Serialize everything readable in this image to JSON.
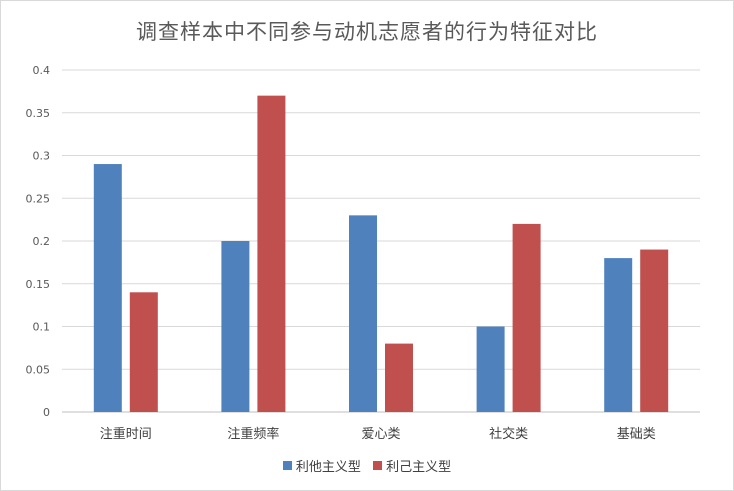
{
  "chart_data": {
    "type": "bar",
    "title": "调查样本中不同参与动机志愿者的行为特征对比",
    "categories": [
      "注重时间",
      "注重频率",
      "爱心类",
      "社交类",
      "基础类"
    ],
    "series": [
      {
        "name": "利他主义型",
        "values": [
          0.29,
          0.2,
          0.23,
          0.1,
          0.18
        ],
        "color": "#4f81bd"
      },
      {
        "name": "利己主义型",
        "values": [
          0.14,
          0.37,
          0.08,
          0.22,
          0.19
        ],
        "color": "#c0504d"
      }
    ],
    "ylim": [
      0,
      0.4
    ],
    "yticks": [
      "0",
      "0.05",
      "0.1",
      "0.15",
      "0.2",
      "0.25",
      "0.3",
      "0.35",
      "0.4"
    ],
    "grid": true,
    "legend_position": "bottom"
  }
}
